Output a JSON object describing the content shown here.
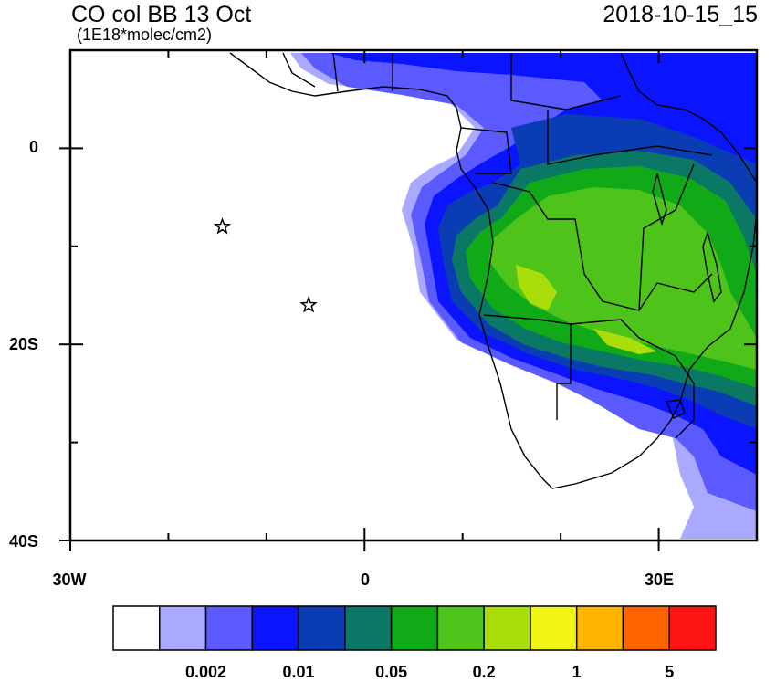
{
  "title": "CO col BB 13 Oct",
  "units": "(1E18*molec/cm2)",
  "datetime": "2018-10-15_15",
  "axes": {
    "lat_labels": [
      "0",
      "20S",
      "40S"
    ],
    "lon_labels": [
      "30W",
      "0",
      "30E"
    ]
  },
  "colorbar": {
    "colors": [
      "#ffffff",
      "#a9a9ff",
      "#5a5aff",
      "#0a14ff",
      "#0a3cb4",
      "#0a7864",
      "#10aa18",
      "#4ec31a",
      "#aade0a",
      "#f0f514",
      "#ffb400",
      "#ff6400",
      "#ff1414"
    ],
    "labels": [
      "0.002",
      "0.01",
      "0.05",
      "0.2",
      "1",
      "5"
    ]
  },
  "markers": [
    {
      "name": "star-marker-1",
      "symbol": "star",
      "lon": -14.5,
      "lat": -8
    },
    {
      "name": "star-marker-2",
      "symbol": "star",
      "lon": -5.7,
      "lat": -16
    }
  ]
}
